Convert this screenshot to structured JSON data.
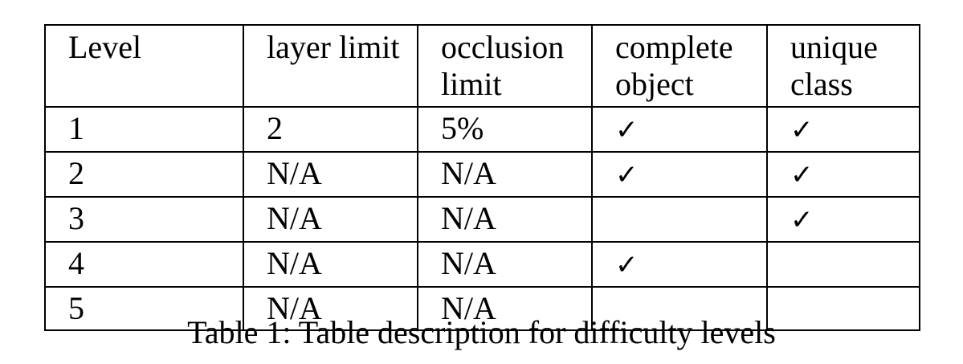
{
  "table": {
    "headers": [
      "Level",
      "layer limit",
      "occlusion limit",
      "complete object",
      "unique class"
    ],
    "check_glyph": "✓",
    "rows": [
      {
        "level": "1",
        "layer_limit": "2",
        "occlusion_limit": "5%",
        "complete_object": true,
        "unique_class": true
      },
      {
        "level": "2",
        "layer_limit": "N/A",
        "occlusion_limit": "N/A",
        "complete_object": true,
        "unique_class": true
      },
      {
        "level": "3",
        "layer_limit": "N/A",
        "occlusion_limit": "N/A",
        "complete_object": false,
        "unique_class": true
      },
      {
        "level": "4",
        "layer_limit": "N/A",
        "occlusion_limit": "N/A",
        "complete_object": true,
        "unique_class": false
      },
      {
        "level": "5",
        "layer_limit": "N/A",
        "occlusion_limit": "N/A",
        "complete_object": false,
        "unique_class": false
      }
    ]
  },
  "caption": "Table 1: Table description for difficulty levels"
}
